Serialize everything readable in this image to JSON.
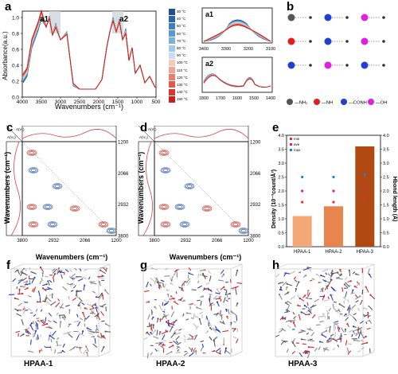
{
  "labels": {
    "a": "a",
    "b": "b",
    "c": "c",
    "d": "d",
    "e": "e",
    "f": "f",
    "g": "g",
    "h": "h"
  },
  "panel_a": {
    "ylabel": "Absorbance(a.u.)",
    "xlabel": "Wavenumbers (cm⁻¹)",
    "xticks": [
      "4000",
      "3500",
      "3000",
      "2500",
      "2000",
      "1500",
      "1000",
      "500"
    ],
    "yticks": [
      "0.0",
      "0.2",
      "0.4",
      "0.6",
      "0.8",
      "1.0"
    ],
    "region_a1": "a1",
    "region_a2": "a2",
    "legend": [
      "30 °C",
      "40 °C",
      "50 °C",
      "60 °C",
      "70 °C",
      "80 °C",
      "90 °C",
      "100 °C",
      "110 °C",
      "120 °C",
      "130 °C",
      "140 °C",
      "150 °C"
    ],
    "legend_colors": [
      "#1f4e8c",
      "#2d65a6",
      "#3f7fbf",
      "#5a98cf",
      "#7cb1dc",
      "#a3c9e8",
      "#c9def0",
      "#f3c9bd",
      "#eea592",
      "#e67f6a",
      "#dd5c49",
      "#d43a2f",
      "#c8201c"
    ],
    "inset_a1": {
      "label": "a1",
      "xticks": [
        "3400",
        "3300",
        "3200",
        "3100"
      ]
    },
    "inset_a2": {
      "label": "a2",
      "xticks": [
        "1800",
        "1700",
        "1600",
        "1500",
        "1400"
      ]
    }
  },
  "panel_b": {
    "legend_items": [
      "—NH₂",
      "—NH",
      "—CONH",
      "—OH"
    ],
    "legend_colors": [
      "#555555",
      "#e02020",
      "#2040d0",
      "#e020e0"
    ]
  },
  "panel_c": {
    "ylabel": "Wavenumbers (cm⁻¹)",
    "xlabel": "Wavenumbers (cm⁻¹)",
    "xticks": [
      "3800",
      "2932",
      "2066",
      "1200"
    ],
    "yticks": [
      "1200",
      "2066",
      "2932",
      "3800"
    ],
    "corner_labels": [
      "A(V₂)",
      "A(V₁)"
    ]
  },
  "panel_d": {
    "ylabel": "Wavenumbers (cm⁻¹)",
    "xlabel": "Wavenumbers (cm⁻¹)",
    "xticks": [
      "3800",
      "2932",
      "2066",
      "1200"
    ],
    "yticks": [
      "1200",
      "2066",
      "2932",
      "3800"
    ],
    "corner_labels": [
      "A(V₂)",
      "A(V₁)"
    ]
  },
  "chart_data": {
    "type": "bar",
    "categories": [
      "HPAA-1",
      "HPAA-2",
      "HPAA-3"
    ],
    "values": [
      1.1,
      1.45,
      3.6
    ],
    "bar_colors": [
      "#f4a878",
      "#e8854e",
      "#b04a12"
    ],
    "ylabel": "Density (10⁻³count/Å³)",
    "ylabel2": "Hbond length (Å)",
    "ylim": [
      0,
      4.0
    ],
    "ylim2": [
      0,
      4.0
    ],
    "yticks": [
      "0.0",
      "0.5",
      "1.0",
      "1.5",
      "2.0",
      "2.5",
      "3.0",
      "3.5",
      "4.0"
    ],
    "legend": [
      "min",
      "ave",
      "max"
    ],
    "legend_colors": [
      "#e03030",
      "#e02080",
      "#2080e0"
    ],
    "series": [
      {
        "name": "min",
        "values": [
          1.6,
          1.6,
          1.7
        ]
      },
      {
        "name": "ave",
        "values": [
          2.0,
          2.0,
          2.1
        ]
      },
      {
        "name": "max",
        "values": [
          2.5,
          2.5,
          2.6
        ]
      }
    ]
  },
  "panel_fgh": {
    "captions": [
      "HPAA-1",
      "HPAA-2",
      "HPAA-3"
    ]
  }
}
